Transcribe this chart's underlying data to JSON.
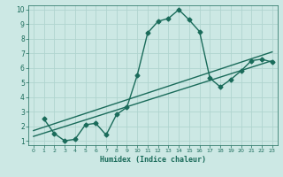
{
  "title": "",
  "xlabel": "Humidex (Indice chaleur)",
  "ylabel": "",
  "bg_color": "#cce8e4",
  "grid_color": "#b0d4cf",
  "line_color": "#1a6b5a",
  "xlim": [
    -0.5,
    23.5
  ],
  "ylim": [
    0.7,
    10.3
  ],
  "xticks": [
    0,
    1,
    2,
    3,
    4,
    5,
    6,
    7,
    8,
    9,
    10,
    11,
    12,
    13,
    14,
    15,
    16,
    17,
    18,
    19,
    20,
    21,
    22,
    23
  ],
  "yticks": [
    1,
    2,
    3,
    4,
    5,
    6,
    7,
    8,
    9,
    10
  ],
  "line1_x": [
    1,
    2,
    3,
    4,
    5,
    6,
    7,
    8,
    9,
    10,
    11,
    12,
    13,
    14,
    15,
    16,
    17,
    18,
    19,
    20,
    21,
    22,
    23
  ],
  "line1_y": [
    2.5,
    1.5,
    1.0,
    1.1,
    2.1,
    2.2,
    1.4,
    2.8,
    3.3,
    5.5,
    8.4,
    9.2,
    9.4,
    10.0,
    9.3,
    8.5,
    5.3,
    4.7,
    5.2,
    5.8,
    6.5,
    6.6,
    6.4
  ],
  "line2_x": [
    0,
    23
  ],
  "line2_y": [
    1.3,
    6.5
  ],
  "line3_x": [
    0,
    23
  ],
  "line3_y": [
    1.7,
    7.1
  ],
  "marker": "D",
  "markersize": 2.5,
  "linewidth": 1.0
}
